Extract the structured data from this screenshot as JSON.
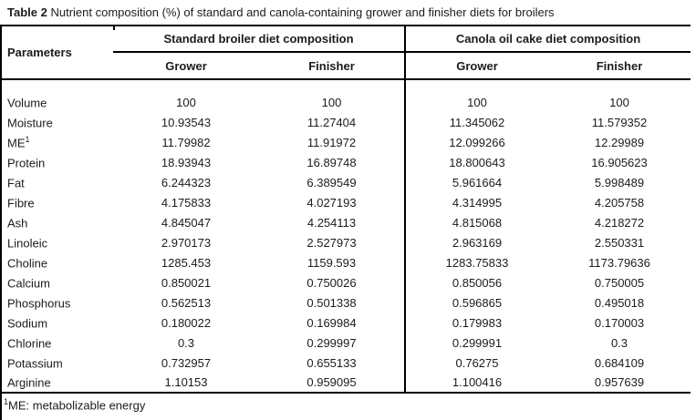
{
  "colors": {
    "text": "#1c1c1c",
    "rule": "#000000",
    "background": "#ffffff"
  },
  "title": {
    "label": "Table 2",
    "text": "Nutrient composition (%) of standard and canola-containing grower and finisher diets for broilers"
  },
  "table": {
    "param_header": "Parameters",
    "groups": [
      {
        "label": "Standard broiler diet composition",
        "subcols": [
          "Grower",
          "Finisher"
        ]
      },
      {
        "label": "Canola oil cake diet composition",
        "subcols": [
          "Grower",
          "Finisher"
        ]
      }
    ],
    "rows": [
      {
        "param": "Volume",
        "values": [
          "100",
          "100",
          "100",
          "100"
        ]
      },
      {
        "param": "Moisture",
        "values": [
          "10.93543",
          "11.27404",
          "11.345062",
          "11.579352"
        ]
      },
      {
        "param": "ME",
        "param_sup": "1",
        "values": [
          "11.79982",
          "11.91972",
          "12.099266",
          "12.29989"
        ]
      },
      {
        "param": "Protein",
        "values": [
          "18.93943",
          "16.89748",
          "18.800643",
          "16.905623"
        ]
      },
      {
        "param": "Fat",
        "values": [
          "6.244323",
          "6.389549",
          "5.961664",
          "5.998489"
        ]
      },
      {
        "param": "Fibre",
        "values": [
          "4.175833",
          "4.027193",
          "4.314995",
          "4.205758"
        ]
      },
      {
        "param": "Ash",
        "values": [
          "4.845047",
          "4.254113",
          "4.815068",
          "4.218272"
        ]
      },
      {
        "param": "Linoleic",
        "values": [
          "2.970173",
          "2.527973",
          "2.963169",
          "2.550331"
        ]
      },
      {
        "param": "Choline",
        "values": [
          "1285.453",
          "1159.593",
          "1283.75833",
          "1173.79636"
        ]
      },
      {
        "param": "Calcium",
        "values": [
          "0.850021",
          "0.750026",
          "0.850056",
          "0.750005"
        ]
      },
      {
        "param": "Phosphorus",
        "values": [
          "0.562513",
          "0.501338",
          "0.596865",
          "0.495018"
        ]
      },
      {
        "param": "Sodium",
        "values": [
          "0.180022",
          "0.169984",
          "0.179983",
          "0.170003"
        ]
      },
      {
        "param": "Chlorine",
        "values": [
          "0.3",
          "0.299997",
          "0.299991",
          "0.3"
        ]
      },
      {
        "param": "Potassium",
        "values": [
          "0.732957",
          "0.655133",
          "0.76275",
          "0.684109"
        ]
      },
      {
        "param": "Arginine",
        "values": [
          "1.10153",
          "0.959095",
          "1.100416",
          "0.957639"
        ]
      }
    ],
    "footnote": {
      "sup": "1",
      "text": "ME: metabolizable energy"
    }
  }
}
